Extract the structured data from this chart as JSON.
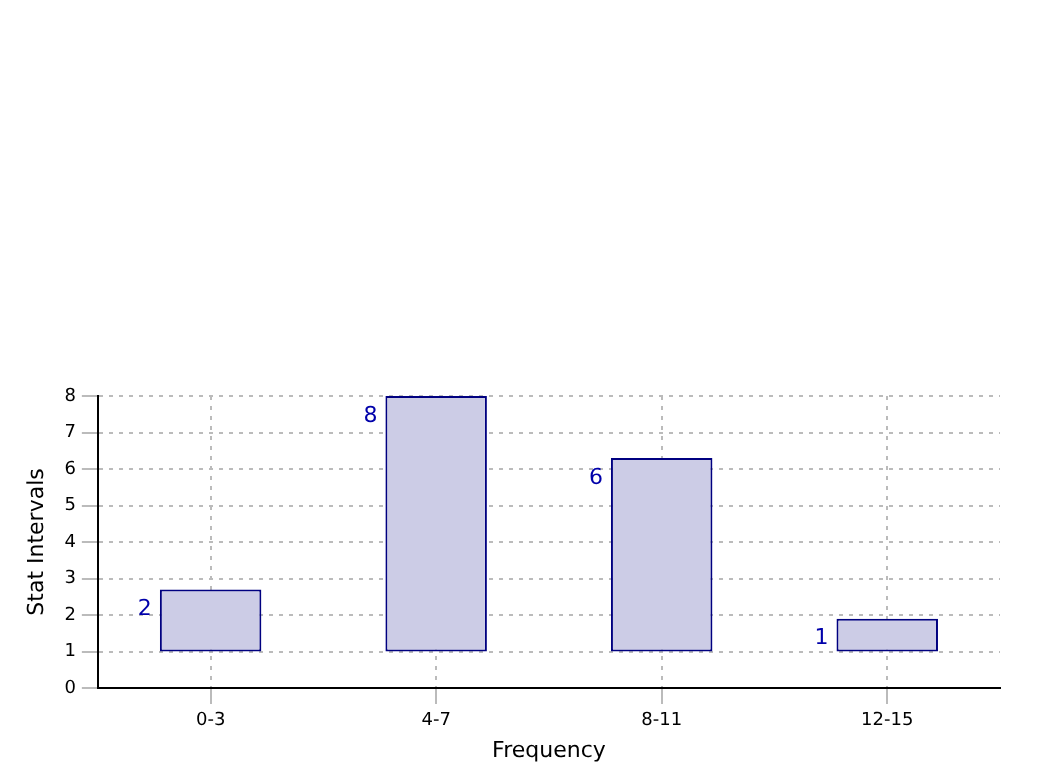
{
  "chart_data": {
    "type": "bar",
    "xlabel": "Frequency",
    "ylabel": "Stat Intervals",
    "categories": [
      "0-3",
      "4-7",
      "8-11",
      "12-15"
    ],
    "base": [
      1,
      1,
      1,
      1
    ],
    "values": [
      1.7,
      7.0,
      5.3,
      0.9
    ],
    "value_labels": [
      "2",
      "8",
      "6",
      "1"
    ],
    "color": "#cccce6",
    "ylim": [
      0,
      8
    ],
    "yticks": [
      0,
      1,
      2,
      3,
      4,
      5,
      6,
      7,
      8
    ],
    "grid": true,
    "legend": false
  }
}
